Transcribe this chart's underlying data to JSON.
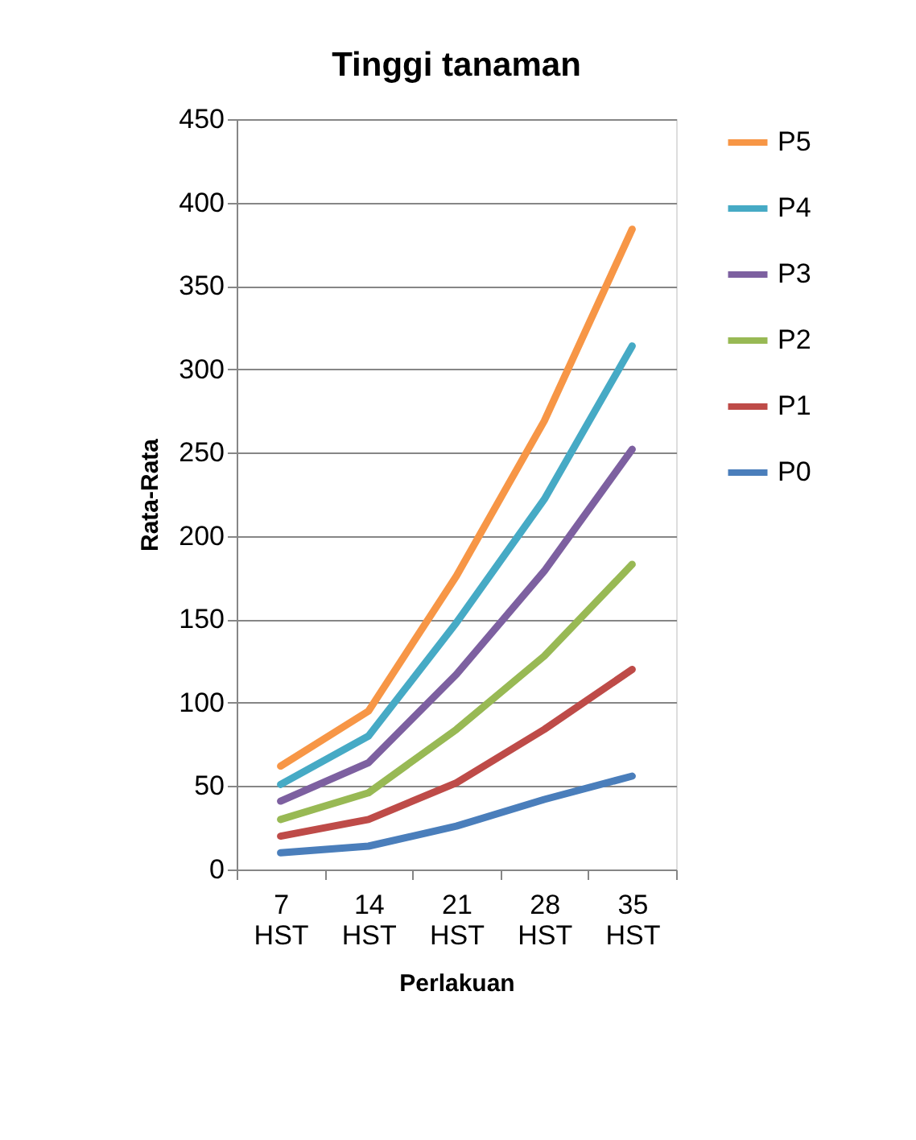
{
  "chart_data": {
    "type": "line",
    "title": "Tinggi tanaman",
    "xlabel": "Perlakuan",
    "ylabel": "Rata-Rata",
    "categories": [
      "7 HST",
      "14 HST",
      "21 HST",
      "28 HST",
      "35 HST"
    ],
    "series": [
      {
        "name": "P0",
        "color": "#4a7ebb",
        "values": [
          10,
          14,
          26,
          42,
          56
        ]
      },
      {
        "name": "P1",
        "color": "#be4b48",
        "values": [
          20,
          30,
          52,
          84,
          120
        ]
      },
      {
        "name": "P2",
        "color": "#98b954",
        "values": [
          30,
          46,
          84,
          128,
          183
        ]
      },
      {
        "name": "P3",
        "color": "#7d60a0",
        "values": [
          41,
          64,
          117,
          179,
          252
        ]
      },
      {
        "name": "P4",
        "color": "#46aac5",
        "values": [
          51,
          80,
          148,
          222,
          314
        ]
      },
      {
        "name": "P5",
        "color": "#f79646",
        "values": [
          62,
          95,
          176,
          269,
          384
        ]
      }
    ],
    "ylim": [
      0,
      450
    ],
    "yticks": [
      0,
      50,
      100,
      150,
      200,
      250,
      300,
      350,
      400,
      450
    ],
    "grid": "y",
    "legend": "right",
    "marker": "none",
    "line_style": "solid"
  }
}
